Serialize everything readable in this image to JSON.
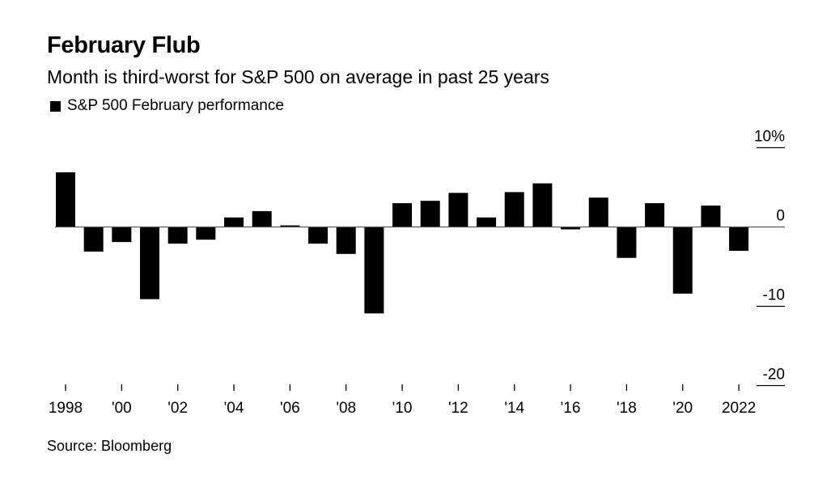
{
  "chart_data": {
    "type": "bar",
    "title": "February Flub",
    "subtitle": "Month is third-worst for S&P 500 on average in past 25 years",
    "legend": [
      "S&P 500 February performance"
    ],
    "source": "Source: Bloomberg",
    "categories": [
      "1998",
      "1999",
      "2000",
      "2001",
      "2002",
      "2003",
      "2004",
      "2005",
      "2006",
      "2007",
      "2008",
      "2009",
      "2010",
      "2011",
      "2012",
      "2013",
      "2014",
      "2015",
      "2016",
      "2017",
      "2018",
      "2019",
      "2020",
      "2021",
      "2022"
    ],
    "values": [
      6.9,
      -3.1,
      -1.9,
      -9.1,
      -2.1,
      -1.6,
      1.2,
      2.0,
      0.2,
      -2.1,
      -3.4,
      -10.9,
      3.0,
      3.3,
      4.3,
      1.2,
      4.4,
      5.5,
      -0.3,
      3.7,
      -3.9,
      3.0,
      -8.4,
      2.7,
      -3.0
    ],
    "color": "#000000",
    "ylim": [
      -20,
      10
    ],
    "yticks": [
      {
        "value": 10,
        "label": "10%"
      },
      {
        "value": 0,
        "label": "0"
      },
      {
        "value": -10,
        "label": "-10"
      },
      {
        "value": -20,
        "label": "-20"
      }
    ],
    "xticks": [
      {
        "index": 0,
        "label": "1998"
      },
      {
        "index": 2,
        "label": "'00"
      },
      {
        "index": 4,
        "label": "'02"
      },
      {
        "index": 6,
        "label": "'04"
      },
      {
        "index": 8,
        "label": "'06"
      },
      {
        "index": 10,
        "label": "'08"
      },
      {
        "index": 12,
        "label": "'10"
      },
      {
        "index": 14,
        "label": "'12"
      },
      {
        "index": 16,
        "label": "'14"
      },
      {
        "index": 18,
        "label": "'16"
      },
      {
        "index": 20,
        "label": "'18"
      },
      {
        "index": 22,
        "label": "'20"
      },
      {
        "index": 24,
        "label": "2022"
      }
    ],
    "xlabel": "",
    "ylabel": "",
    "grid": false,
    "legend_position": "top-left"
  }
}
